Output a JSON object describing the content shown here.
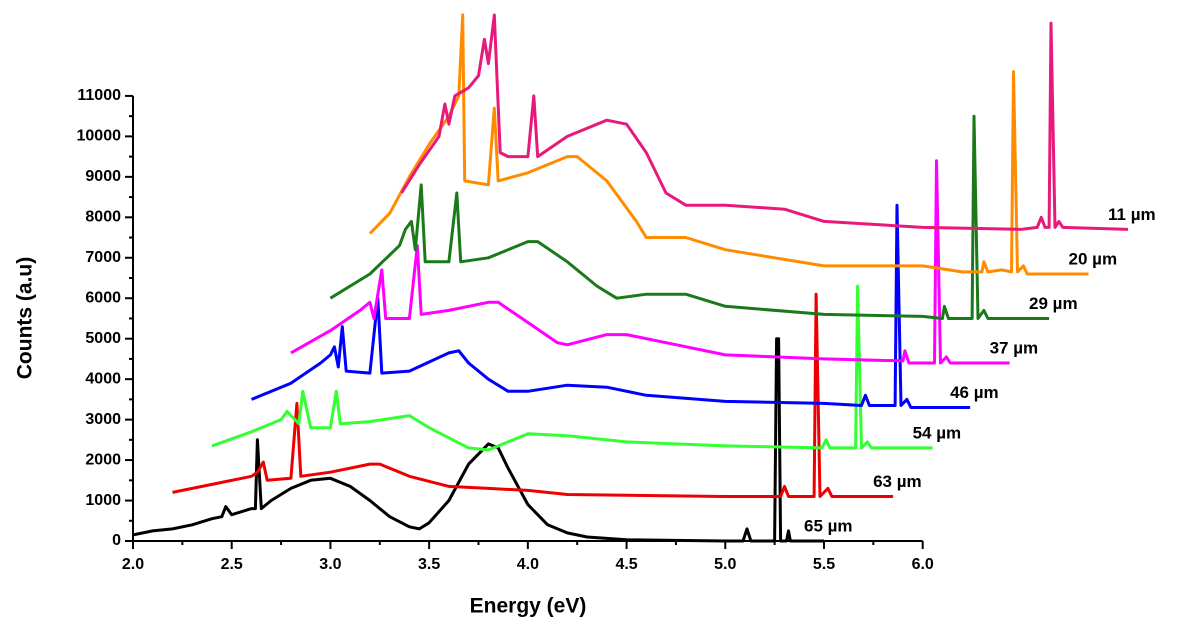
{
  "chart_data": {
    "type": "line",
    "xlabel": "Energy (eV)",
    "ylabel": "Counts (a.u)",
    "xlim": [
      2.0,
      7.05
    ],
    "ylim": [
      0,
      13000
    ],
    "xticks": [
      {
        "value": 2.0,
        "label": "2.0"
      },
      2.5,
      {
        "value": 3.0,
        "label": "3.0"
      },
      3.5,
      {
        "value": 4.0,
        "label": "4.0"
      },
      4.5,
      {
        "value": 5.0,
        "label": "5.0"
      },
      5.5,
      {
        "value": 6.0,
        "label": "6.0"
      }
    ],
    "yticks": [
      0,
      1000,
      2000,
      3000,
      4000,
      5000,
      6000,
      7000,
      8000,
      9000,
      10000,
      11000
    ],
    "series": [
      {
        "name": "65 µm",
        "color": "#000000",
        "x": [
          2.0,
          2.1,
          2.2,
          2.3,
          2.4,
          2.45,
          2.47,
          2.5,
          2.6,
          2.62,
          2.63,
          2.65,
          2.7,
          2.8,
          2.9,
          3.0,
          3.1,
          3.2,
          3.3,
          3.4,
          3.45,
          3.5,
          3.6,
          3.7,
          3.8,
          3.85,
          3.9,
          4.0,
          4.1,
          4.2,
          4.3,
          4.5,
          5.0,
          5.09,
          5.11,
          5.13,
          5.25,
          5.26,
          5.27,
          5.28,
          5.31,
          5.32,
          5.33,
          5.5
        ],
        "values": [
          150,
          250,
          300,
          400,
          550,
          600,
          850,
          650,
          800,
          800,
          2500,
          800,
          1000,
          1300,
          1500,
          1550,
          1350,
          1000,
          600,
          350,
          300,
          450,
          1000,
          1900,
          2400,
          2300,
          1800,
          900,
          400,
          200,
          100,
          30,
          0,
          0,
          300,
          0,
          0,
          5000,
          5000,
          0,
          0,
          250,
          0,
          0
        ]
      },
      {
        "name": "63 µm",
        "color": "#ee0000",
        "x": [
          2.2,
          2.4,
          2.6,
          2.63,
          2.66,
          2.68,
          2.8,
          2.83,
          2.85,
          3.0,
          3.2,
          3.25,
          3.4,
          3.6,
          3.8,
          4.0,
          4.2,
          5.0,
          5.28,
          5.3,
          5.32,
          5.45,
          5.46,
          5.48,
          5.52,
          5.54,
          5.85
        ],
        "values": [
          1200,
          1400,
          1600,
          1700,
          1950,
          1500,
          1550,
          3400,
          1600,
          1700,
          1900,
          1900,
          1600,
          1350,
          1300,
          1250,
          1150,
          1100,
          1100,
          1350,
          1100,
          1100,
          6100,
          1100,
          1300,
          1100,
          1100
        ]
      },
      {
        "name": "54 µm",
        "color": "#33ff33",
        "x": [
          2.4,
          2.6,
          2.75,
          2.78,
          2.84,
          2.86,
          2.9,
          3.0,
          3.03,
          3.05,
          3.2,
          3.4,
          3.5,
          3.7,
          3.8,
          4.0,
          4.2,
          4.5,
          5.0,
          5.49,
          5.51,
          5.53,
          5.66,
          5.67,
          5.69,
          5.72,
          5.74,
          6.05
        ],
        "values": [
          2350,
          2700,
          3000,
          3200,
          2900,
          3700,
          2800,
          2800,
          3700,
          2900,
          2950,
          3100,
          2800,
          2300,
          2250,
          2650,
          2600,
          2450,
          2350,
          2300,
          2500,
          2300,
          2300,
          6300,
          2300,
          2450,
          2300,
          2300
        ]
      },
      {
        "name": "46 µm",
        "color": "#0000ff",
        "x": [
          2.6,
          2.8,
          2.95,
          3.0,
          3.02,
          3.04,
          3.06,
          3.08,
          3.2,
          3.24,
          3.26,
          3.4,
          3.6,
          3.65,
          3.7,
          3.8,
          3.9,
          4.0,
          4.2,
          4.4,
          4.6,
          5.0,
          5.5,
          5.69,
          5.71,
          5.73,
          5.86,
          5.87,
          5.89,
          5.92,
          5.94,
          6.24
        ],
        "values": [
          3500,
          3900,
          4400,
          4600,
          4800,
          4300,
          5300,
          4200,
          4150,
          6000,
          4150,
          4200,
          4650,
          4700,
          4400,
          4000,
          3700,
          3700,
          3850,
          3800,
          3600,
          3450,
          3400,
          3350,
          3600,
          3350,
          3350,
          8300,
          3350,
          3500,
          3300,
          3300
        ]
      },
      {
        "name": "37 µm",
        "color": "#ff00ff",
        "x": [
          2.8,
          3.0,
          3.15,
          3.2,
          3.22,
          3.26,
          3.28,
          3.4,
          3.44,
          3.46,
          3.6,
          3.8,
          3.85,
          4.0,
          4.15,
          4.2,
          4.4,
          4.5,
          4.7,
          5.0,
          5.5,
          5.9,
          5.91,
          5.93,
          6.06,
          6.07,
          6.09,
          6.12,
          6.14,
          6.44
        ],
        "values": [
          4650,
          5200,
          5700,
          5900,
          5500,
          6700,
          5500,
          5500,
          7300,
          5600,
          5700,
          5900,
          5900,
          5400,
          4900,
          4850,
          5100,
          5100,
          4900,
          4600,
          4500,
          4450,
          4700,
          4400,
          4400,
          9400,
          4400,
          4550,
          4400,
          4400
        ]
      },
      {
        "name": "29 µm",
        "color": "#1a7a1a",
        "x": [
          3.0,
          3.2,
          3.35,
          3.38,
          3.41,
          3.43,
          3.46,
          3.48,
          3.6,
          3.64,
          3.66,
          3.8,
          4.0,
          4.05,
          4.2,
          4.35,
          4.45,
          4.6,
          4.8,
          5.0,
          5.5,
          6.0,
          6.1,
          6.11,
          6.13,
          6.25,
          6.26,
          6.28,
          6.31,
          6.33,
          6.64
        ],
        "values": [
          6000,
          6600,
          7300,
          7700,
          7900,
          7200,
          8800,
          6900,
          6900,
          8600,
          6900,
          7000,
          7400,
          7400,
          6900,
          6300,
          6000,
          6100,
          6100,
          5800,
          5600,
          5550,
          5500,
          5800,
          5500,
          5500,
          10500,
          5500,
          5700,
          5500,
          5500
        ]
      },
      {
        "name": "20 µm",
        "color": "#ff8c00",
        "x": [
          3.2,
          3.3,
          3.4,
          3.5,
          3.6,
          3.65,
          3.67,
          3.68,
          3.8,
          3.83,
          3.85,
          4.0,
          4.2,
          4.25,
          4.4,
          4.55,
          4.6,
          4.8,
          5.0,
          5.5,
          6.0,
          6.2,
          6.3,
          6.31,
          6.33,
          6.4,
          6.45,
          6.46,
          6.48,
          6.51,
          6.53,
          6.84
        ],
        "values": [
          7600,
          8100,
          9000,
          9800,
          10500,
          11000,
          13000,
          8900,
          8800,
          10700,
          8900,
          9100,
          9500,
          9500,
          8900,
          7900,
          7500,
          7500,
          7200,
          6800,
          6800,
          6650,
          6650,
          6900,
          6650,
          6700,
          6650,
          11600,
          6650,
          6800,
          6600,
          6600
        ]
      },
      {
        "name": "11 µm",
        "color": "#e8197a",
        "x": [
          3.36,
          3.45,
          3.55,
          3.58,
          3.6,
          3.63,
          3.7,
          3.75,
          3.78,
          3.8,
          3.83,
          3.86,
          3.9,
          4.0,
          4.03,
          4.05,
          4.2,
          4.4,
          4.5,
          4.6,
          4.7,
          4.8,
          5.0,
          5.3,
          5.5,
          6.0,
          6.5,
          6.58,
          6.6,
          6.62,
          6.64,
          6.65,
          6.67,
          6.69,
          6.71,
          7.04
        ],
        "values": [
          8600,
          9300,
          10000,
          10800,
          10300,
          11000,
          11200,
          11500,
          12400,
          11800,
          13000,
          9600,
          9500,
          9500,
          11000,
          9500,
          10000,
          10400,
          10300,
          9600,
          8600,
          8300,
          8300,
          8200,
          7900,
          7750,
          7700,
          7750,
          8000,
          7750,
          7750,
          12800,
          7750,
          7900,
          7750,
          7700
        ]
      }
    ]
  }
}
